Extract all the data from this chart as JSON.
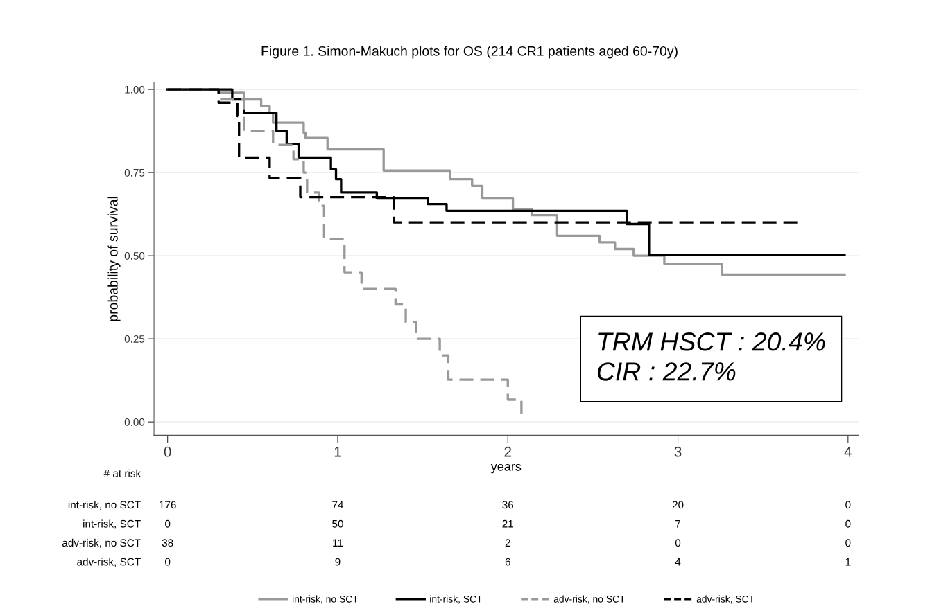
{
  "chart_data": {
    "type": "step",
    "title": "Figure 1. Simon-Makuch plots for OS (214 CR1 patients aged 60-70y)",
    "xlabel": "years",
    "ylabel": "probability of survival",
    "series": [
      {
        "name": "int-risk, no SCT",
        "color": "#999999",
        "line_style": "solid",
        "x": [
          0,
          0.3,
          0.45,
          0.55,
          0.6,
          0.62,
          0.8,
          0.81,
          0.94,
          1.27,
          1.66,
          1.79,
          1.85,
          2.03,
          2.14,
          2.29,
          2.54,
          2.63,
          2.74,
          2.92,
          3.26,
          3.98
        ],
        "values": [
          1.0,
          0.99,
          0.97,
          0.95,
          0.93,
          0.9,
          0.87,
          0.854,
          0.82,
          0.756,
          0.73,
          0.71,
          0.672,
          0.64,
          0.622,
          0.56,
          0.54,
          0.52,
          0.5,
          0.476,
          0.443,
          0.443
        ]
      },
      {
        "name": "int-risk, SCT",
        "color": "#000000",
        "line_style": "solid",
        "x": [
          0,
          0.38,
          0.45,
          0.64,
          0.7,
          0.77,
          0.96,
          0.99,
          1.02,
          1.23,
          1.53,
          1.64,
          2.7,
          2.83,
          3.98
        ],
        "values": [
          1.0,
          0.97,
          0.93,
          0.875,
          0.835,
          0.795,
          0.76,
          0.73,
          0.69,
          0.672,
          0.655,
          0.635,
          0.595,
          0.503,
          0.503
        ]
      },
      {
        "name": "adv-risk, no SCT",
        "color": "#999999",
        "line_style": "dashed",
        "x": [
          0,
          0.3,
          0.45,
          0.62,
          0.74,
          0.8,
          0.82,
          0.89,
          0.92,
          1.04,
          1.14,
          1.34,
          1.4,
          1.46,
          1.6,
          1.65,
          2.0,
          2.08
        ],
        "values": [
          1.0,
          0.97,
          0.875,
          0.833,
          0.79,
          0.75,
          0.69,
          0.65,
          0.55,
          0.45,
          0.4,
          0.353,
          0.3,
          0.25,
          0.2,
          0.127,
          0.067,
          0.023
        ]
      },
      {
        "name": "adv-risk, SCT",
        "color": "#000000",
        "line_style": "dashed",
        "x": [
          0,
          0.3,
          0.41,
          0.42,
          0.6,
          0.78,
          1.33,
          3.71
        ],
        "values": [
          1.0,
          0.96,
          0.92,
          0.795,
          0.733,
          0.676,
          0.6,
          0.6
        ]
      }
    ],
    "xlim": [
      -0.08,
      4.06
    ],
    "ylim": [
      -0.04,
      1.02
    ],
    "xticks": [
      0,
      1,
      2,
      3,
      4
    ],
    "yticks": [
      {
        "value": 0,
        "label": "0.00"
      },
      {
        "value": 0.25,
        "label": "0.25"
      },
      {
        "value": 0.5,
        "label": "0.50"
      },
      {
        "value": 0.75,
        "label": "0.75"
      },
      {
        "value": 1,
        "label": "1.00"
      }
    ],
    "grid": "y",
    "legend": "bottom",
    "annotations": [
      "# at risk",
      "int-risk, no SCT",
      "176",
      "74",
      "36",
      "20",
      "0",
      "int-risk, SCT",
      "0",
      "50",
      "21",
      "7",
      "0",
      "adv-risk, no SCT",
      "38",
      "11",
      "2",
      "0",
      "0",
      "adv-risk, SCT",
      "0",
      "9",
      "6",
      "4",
      "1",
      "TRM HSCT : 20.4%",
      "CIR : 22.7%"
    ]
  }
}
